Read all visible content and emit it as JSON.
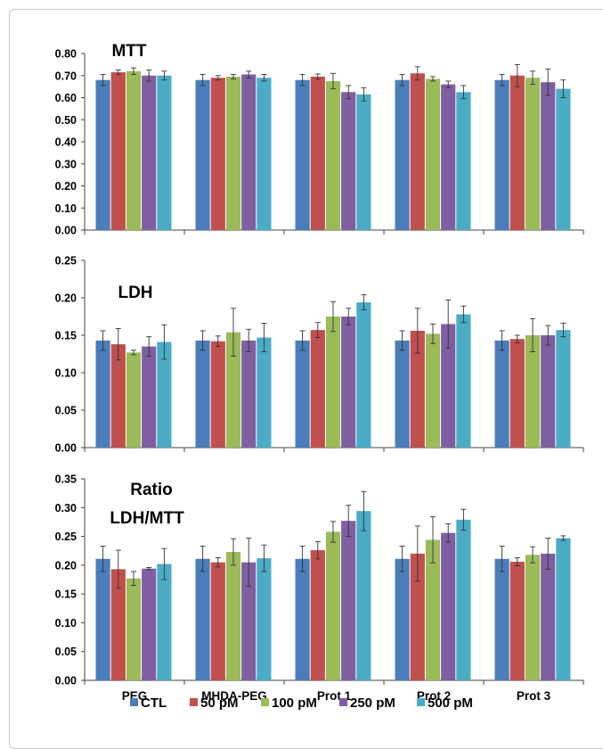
{
  "chart_data": [
    {
      "type": "bar",
      "title": "MTT",
      "categories": [
        "PEG",
        "MHDA-PEG",
        "Prot 1",
        "Prot 2",
        "Prot 3"
      ],
      "ylim": [
        0,
        0.8
      ],
      "yticks": [
        "0.00",
        "0.10",
        "0.20",
        "0.30",
        "0.40",
        "0.50",
        "0.60",
        "0.70",
        "0.80"
      ],
      "series": [
        {
          "name": "CTL",
          "values": [
            0.68,
            0.68,
            0.68,
            0.68,
            0.68
          ],
          "errors": [
            0.025,
            0.025,
            0.025,
            0.025,
            0.025
          ]
        },
        {
          "name": "50 pM",
          "values": [
            0.715,
            0.69,
            0.695,
            0.71,
            0.7
          ],
          "errors": [
            0.01,
            0.01,
            0.012,
            0.03,
            0.05
          ]
        },
        {
          "name": "100 pM",
          "values": [
            0.72,
            0.695,
            0.675,
            0.685,
            0.69
          ],
          "errors": [
            0.015,
            0.01,
            0.035,
            0.01,
            0.03
          ]
        },
        {
          "name": "250 pM",
          "values": [
            0.7,
            0.705,
            0.625,
            0.66,
            0.67
          ],
          "errors": [
            0.025,
            0.015,
            0.03,
            0.015,
            0.06
          ]
        },
        {
          "name": "500 pM",
          "values": [
            0.7,
            0.69,
            0.615,
            0.625,
            0.64
          ],
          "errors": [
            0.02,
            0.015,
            0.03,
            0.03,
            0.04
          ]
        }
      ]
    },
    {
      "type": "bar",
      "title": "LDH",
      "categories": [
        "PEG",
        "MHDA-PEG",
        "Prot 1",
        "Prot 2",
        "Prot 3"
      ],
      "ylim": [
        0,
        0.25
      ],
      "yticks": [
        "0.00",
        "0.05",
        "0.10",
        "0.15",
        "0.20",
        "0.25"
      ],
      "series": [
        {
          "name": "CTL",
          "values": [
            0.143,
            0.143,
            0.143,
            0.143,
            0.143
          ],
          "errors": [
            0.013,
            0.013,
            0.013,
            0.013,
            0.013
          ]
        },
        {
          "name": "50 pM",
          "values": [
            0.138,
            0.142,
            0.157,
            0.156,
            0.145
          ],
          "errors": [
            0.021,
            0.007,
            0.01,
            0.03,
            0.005
          ]
        },
        {
          "name": "100 pM",
          "values": [
            0.127,
            0.154,
            0.175,
            0.152,
            0.15
          ],
          "errors": [
            0.003,
            0.032,
            0.02,
            0.013,
            0.022
          ]
        },
        {
          "name": "250 pM",
          "values": [
            0.135,
            0.143,
            0.175,
            0.165,
            0.15
          ],
          "errors": [
            0.013,
            0.015,
            0.011,
            0.032,
            0.013
          ]
        },
        {
          "name": "500 pM",
          "values": [
            0.141,
            0.147,
            0.194,
            0.178,
            0.157
          ],
          "errors": [
            0.023,
            0.019,
            0.01,
            0.011,
            0.009
          ]
        }
      ]
    },
    {
      "type": "bar",
      "title": "Ratio",
      "subtitle": "LDH/MTT",
      "categories": [
        "PEG",
        "MHDA-PEG",
        "Prot 1",
        "Prot 2",
        "Prot 3"
      ],
      "ylim": [
        0,
        0.35
      ],
      "yticks": [
        "0.00",
        "0.05",
        "0.10",
        "0.15",
        "0.20",
        "0.25",
        "0.30",
        "0.35"
      ],
      "series": [
        {
          "name": "CTL",
          "values": [
            0.211,
            0.211,
            0.211,
            0.211,
            0.211
          ],
          "errors": [
            0.022,
            0.022,
            0.022,
            0.022,
            0.022
          ]
        },
        {
          "name": "50 pM",
          "values": [
            0.193,
            0.205,
            0.226,
            0.22,
            0.206
          ],
          "errors": [
            0.033,
            0.008,
            0.015,
            0.048,
            0.007
          ]
        },
        {
          "name": "100 pM",
          "values": [
            0.177,
            0.223,
            0.258,
            0.244,
            0.218
          ],
          "errors": [
            0.012,
            0.023,
            0.018,
            0.04,
            0.014
          ]
        },
        {
          "name": "250 pM",
          "values": [
            0.194,
            0.205,
            0.277,
            0.256,
            0.22
          ],
          "errors": [
            0.002,
            0.042,
            0.027,
            0.016,
            0.027
          ]
        },
        {
          "name": "500 pM",
          "values": [
            0.202,
            0.212,
            0.294,
            0.279,
            0.247
          ],
          "errors": [
            0.027,
            0.023,
            0.034,
            0.018,
            0.004
          ]
        }
      ]
    }
  ],
  "legend": [
    "CTL",
    "50 pM",
    "100 pM",
    "250 pM",
    "500 pM"
  ],
  "colors": {
    "CTL": "#4a7dba",
    "50 pM": "#c0504d",
    "100 pM": "#9bbb59",
    "250 pM": "#7f5fa1",
    "500 pM": "#4bacc6"
  }
}
